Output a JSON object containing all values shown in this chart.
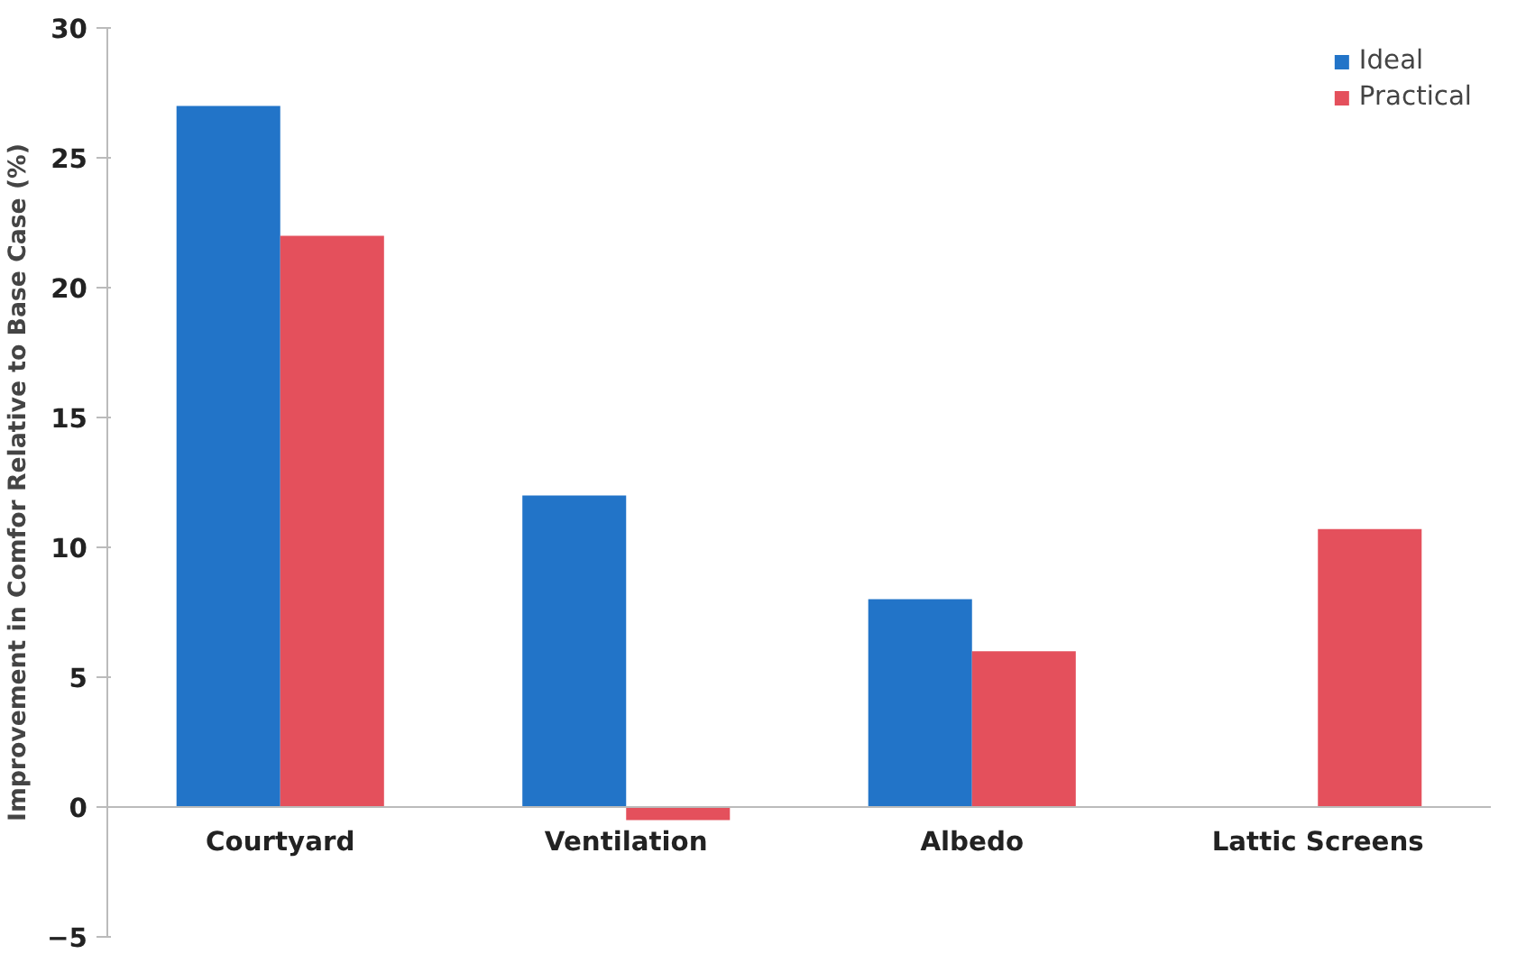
{
  "chart_data": {
    "type": "bar",
    "ylabel": "Improvement in Comfor Relative to Base Case (%)",
    "categories": [
      "Courtyard",
      "Ventilation",
      "Albedo",
      "Lattic Screens"
    ],
    "series": [
      {
        "name": "Ideal",
        "color": "#2274c8",
        "values": [
          27,
          12,
          8,
          null
        ]
      },
      {
        "name": "Practical",
        "color": "#e4505c",
        "values": [
          22,
          -0.5,
          6,
          10.7
        ]
      }
    ],
    "ylim": [
      -5,
      30
    ],
    "yticks": [
      -5,
      0,
      5,
      10,
      15,
      20,
      25,
      30
    ],
    "grid": false,
    "legend": "top right"
  }
}
